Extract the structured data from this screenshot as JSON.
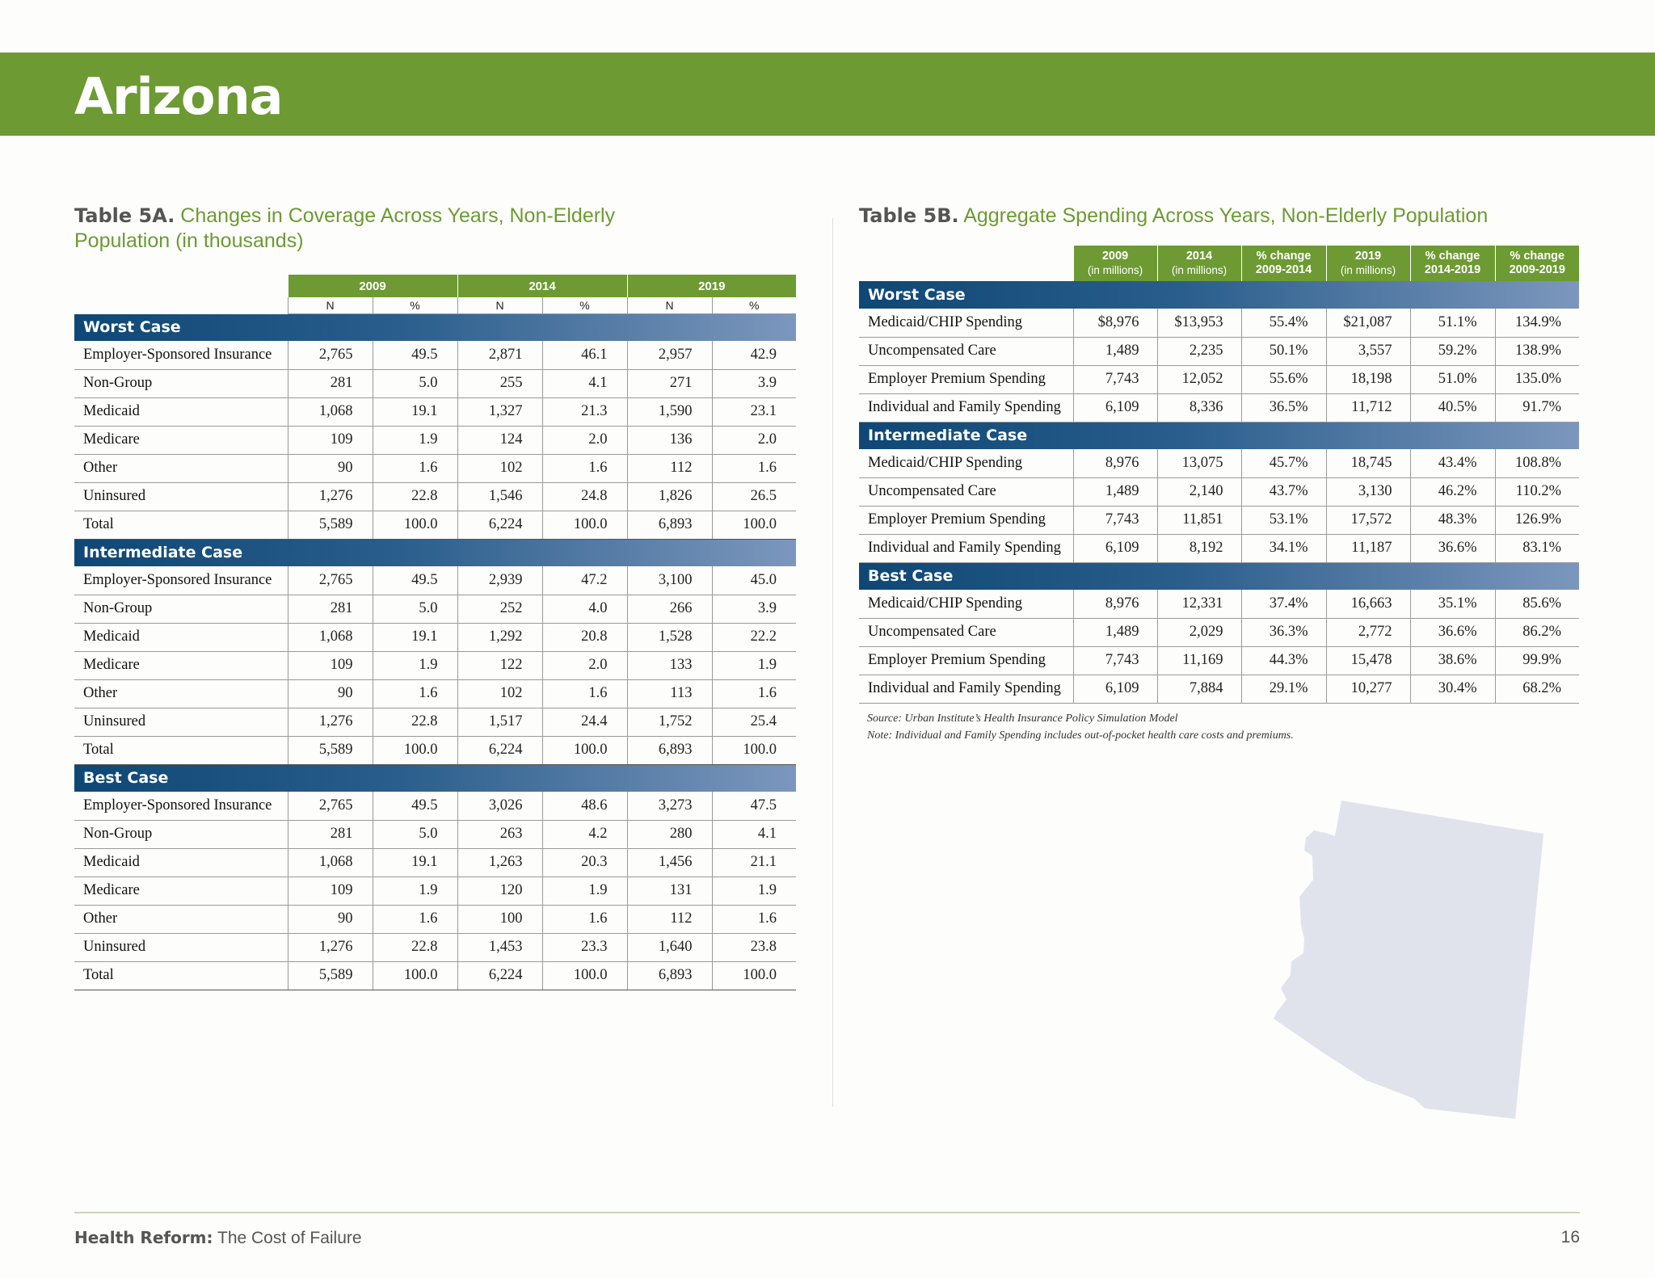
{
  "page": {
    "title": "Arizona",
    "footer_bold": "Health Reform:",
    "footer_text": " The Cost of Failure",
    "page_number": "16"
  },
  "table5a": {
    "label": "Table 5A.",
    "title": " Changes in Coverage Across Years, Non-Elderly",
    "title2": "Population (in thousands)",
    "years": [
      "2009",
      "2014",
      "2019"
    ],
    "subheads": [
      "N",
      "%",
      "N",
      "%",
      "N",
      "%"
    ],
    "sections": [
      {
        "name": "Worst Case",
        "rows": [
          {
            "label": "Employer-Sponsored Insurance",
            "v": [
              "2,765",
              "49.5",
              "2,871",
              "46.1",
              "2,957",
              "42.9"
            ]
          },
          {
            "label": "Non-Group",
            "v": [
              "281",
              "5.0",
              "255",
              "4.1",
              "271",
              "3.9"
            ]
          },
          {
            "label": "Medicaid",
            "v": [
              "1,068",
              "19.1",
              "1,327",
              "21.3",
              "1,590",
              "23.1"
            ]
          },
          {
            "label": "Medicare",
            "v": [
              "109",
              "1.9",
              "124",
              "2.0",
              "136",
              "2.0"
            ]
          },
          {
            "label": "Other",
            "v": [
              "90",
              "1.6",
              "102",
              "1.6",
              "112",
              "1.6"
            ]
          },
          {
            "label": "Uninsured",
            "v": [
              "1,276",
              "22.8",
              "1,546",
              "24.8",
              "1,826",
              "26.5"
            ]
          },
          {
            "label": "Total",
            "v": [
              "5,589",
              "100.0",
              "6,224",
              "100.0",
              "6,893",
              "100.0"
            ]
          }
        ]
      },
      {
        "name": "Intermediate Case",
        "rows": [
          {
            "label": "Employer-Sponsored Insurance",
            "v": [
              "2,765",
              "49.5",
              "2,939",
              "47.2",
              "3,100",
              "45.0"
            ]
          },
          {
            "label": "Non-Group",
            "v": [
              "281",
              "5.0",
              "252",
              "4.0",
              "266",
              "3.9"
            ]
          },
          {
            "label": "Medicaid",
            "v": [
              "1,068",
              "19.1",
              "1,292",
              "20.8",
              "1,528",
              "22.2"
            ]
          },
          {
            "label": "Medicare",
            "v": [
              "109",
              "1.9",
              "122",
              "2.0",
              "133",
              "1.9"
            ]
          },
          {
            "label": "Other",
            "v": [
              "90",
              "1.6",
              "102",
              "1.6",
              "113",
              "1.6"
            ]
          },
          {
            "label": "Uninsured",
            "v": [
              "1,276",
              "22.8",
              "1,517",
              "24.4",
              "1,752",
              "25.4"
            ]
          },
          {
            "label": "Total",
            "v": [
              "5,589",
              "100.0",
              "6,224",
              "100.0",
              "6,893",
              "100.0"
            ]
          }
        ]
      },
      {
        "name": "Best Case",
        "rows": [
          {
            "label": "Employer-Sponsored Insurance",
            "v": [
              "2,765",
              "49.5",
              "3,026",
              "48.6",
              "3,273",
              "47.5"
            ]
          },
          {
            "label": "Non-Group",
            "v": [
              "281",
              "5.0",
              "263",
              "4.2",
              "280",
              "4.1"
            ]
          },
          {
            "label": "Medicaid",
            "v": [
              "1,068",
              "19.1",
              "1,263",
              "20.3",
              "1,456",
              "21.1"
            ]
          },
          {
            "label": "Medicare",
            "v": [
              "109",
              "1.9",
              "120",
              "1.9",
              "131",
              "1.9"
            ]
          },
          {
            "label": "Other",
            "v": [
              "90",
              "1.6",
              "100",
              "1.6",
              "112",
              "1.6"
            ]
          },
          {
            "label": "Uninsured",
            "v": [
              "1,276",
              "22.8",
              "1,453",
              "23.3",
              "1,640",
              "23.8"
            ]
          },
          {
            "label": "Total",
            "v": [
              "5,589",
              "100.0",
              "6,224",
              "100.0",
              "6,893",
              "100.0"
            ]
          }
        ]
      }
    ]
  },
  "table5b": {
    "label": "Table 5B.",
    "title": " Aggregate Spending Across Years, Non-Elderly Population",
    "columns": [
      {
        "top": "2009",
        "bottom": "(in millions)"
      },
      {
        "top": "2014",
        "bottom": "(in millions)"
      },
      {
        "top": "% change",
        "bottom": "2009-2014"
      },
      {
        "top": "2019",
        "bottom": "(in millions)"
      },
      {
        "top": "% change",
        "bottom": "2014-2019"
      },
      {
        "top": "% change",
        "bottom": "2009-2019"
      }
    ],
    "sections": [
      {
        "name": "Worst Case",
        "rows": [
          {
            "label": "Medicaid/CHIP Spending",
            "v": [
              "$8,976",
              "$13,953",
              "55.4%",
              "$21,087",
              "51.1%",
              "134.9%"
            ]
          },
          {
            "label": "Uncompensated Care",
            "v": [
              "1,489",
              "2,235",
              "50.1%",
              "3,557",
              "59.2%",
              "138.9%"
            ]
          },
          {
            "label": "Employer Premium Spending",
            "v": [
              "7,743",
              "12,052",
              "55.6%",
              "18,198",
              "51.0%",
              "135.0%"
            ]
          },
          {
            "label": "Individual and Family Spending",
            "v": [
              "6,109",
              "8,336",
              "36.5%",
              "11,712",
              "40.5%",
              "91.7%"
            ]
          }
        ]
      },
      {
        "name": "Intermediate Case",
        "rows": [
          {
            "label": "Medicaid/CHIP Spending",
            "v": [
              "8,976",
              "13,075",
              "45.7%",
              "18,745",
              "43.4%",
              "108.8%"
            ]
          },
          {
            "label": "Uncompensated Care",
            "v": [
              "1,489",
              "2,140",
              "43.7%",
              "3,130",
              "46.2%",
              "110.2%"
            ]
          },
          {
            "label": "Employer Premium Spending",
            "v": [
              "7,743",
              "11,851",
              "53.1%",
              "17,572",
              "48.3%",
              "126.9%"
            ]
          },
          {
            "label": "Individual and Family Spending",
            "v": [
              "6,109",
              "8,192",
              "34.1%",
              "11,187",
              "36.6%",
              "83.1%"
            ]
          }
        ]
      },
      {
        "name": "Best Case",
        "rows": [
          {
            "label": "Medicaid/CHIP Spending",
            "v": [
              "8,976",
              "12,331",
              "37.4%",
              "16,663",
              "35.1%",
              "85.6%"
            ]
          },
          {
            "label": "Uncompensated Care",
            "v": [
              "1,489",
              "2,029",
              "36.3%",
              "2,772",
              "36.6%",
              "86.2%"
            ]
          },
          {
            "label": "Employer Premium Spending",
            "v": [
              "7,743",
              "11,169",
              "44.3%",
              "15,478",
              "38.6%",
              "99.9%"
            ]
          },
          {
            "label": "Individual and Family Spending",
            "v": [
              "6,109",
              "7,884",
              "29.1%",
              "10,277",
              "30.4%",
              "68.2%"
            ]
          }
        ]
      }
    ],
    "source": "Source: Urban Institute’s Health Insurance Policy Simulation Model",
    "note": "Note: Individual and Family Spending includes out-of-pocket health care costs and premiums."
  },
  "colors": {
    "green": "#6d9a33",
    "navy": "#0e4775",
    "map_fill": "#e0e3ec"
  },
  "icons": {
    "map": "arizona-state-map-icon"
  }
}
